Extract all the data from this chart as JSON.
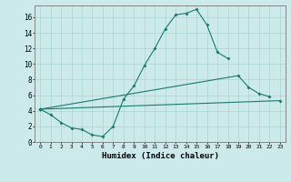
{
  "xlabel": "Humidex (Indice chaleur)",
  "color": "#1a7a6e",
  "bg_color": "#cceaea",
  "grid_color": "#aad4d4",
  "ylim": [
    0,
    17.5
  ],
  "xlim": [
    -0.5,
    23.5
  ],
  "line1_x": [
    0,
    1,
    2,
    3,
    4,
    5,
    6,
    7,
    8,
    9,
    10,
    11,
    12,
    13,
    14,
    15,
    16,
    17,
    18
  ],
  "line1_y": [
    4.2,
    3.5,
    2.5,
    1.8,
    1.6,
    0.9,
    0.7,
    2.0,
    5.5,
    7.2,
    9.8,
    12.0,
    14.5,
    16.3,
    16.5,
    17.0,
    15.0,
    11.5,
    10.7
  ],
  "line2_x": [
    0,
    19,
    20,
    21,
    22
  ],
  "line2_y": [
    4.2,
    8.5,
    7.0,
    6.2,
    5.8
  ],
  "line3_x": [
    0,
    23
  ],
  "line3_y": [
    4.2,
    5.3
  ],
  "yticks": [
    0,
    2,
    4,
    6,
    8,
    10,
    12,
    14,
    16
  ],
  "xticks": [
    0,
    1,
    2,
    3,
    4,
    5,
    6,
    7,
    8,
    9,
    10,
    11,
    12,
    13,
    14,
    15,
    16,
    17,
    18,
    19,
    20,
    21,
    22,
    23
  ]
}
